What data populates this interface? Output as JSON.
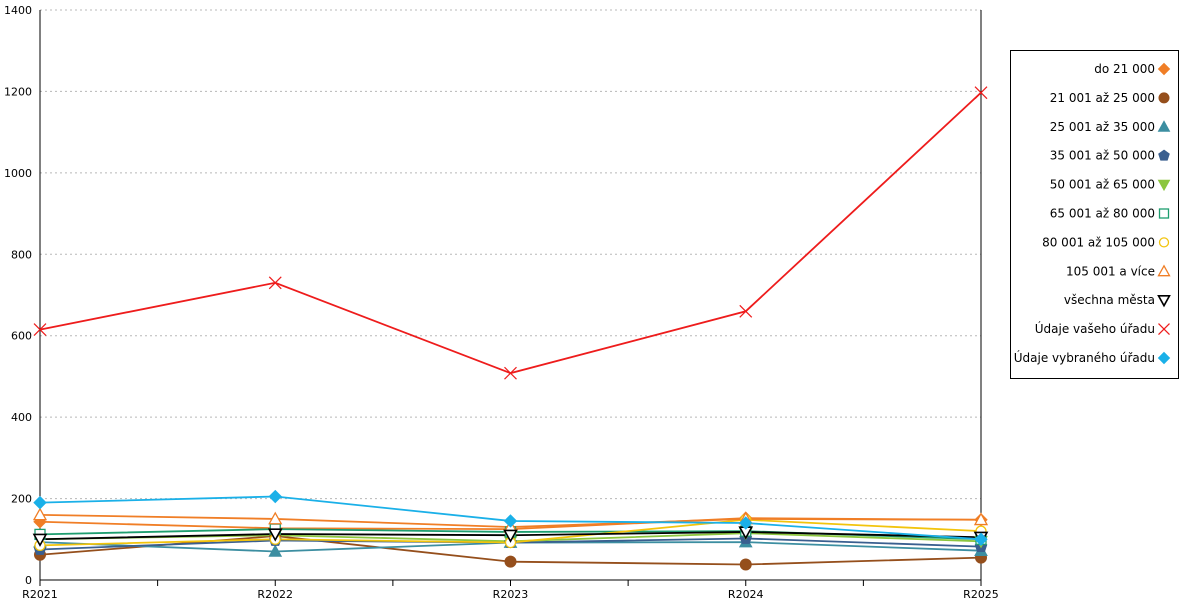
{
  "chart_data": {
    "type": "line",
    "categories": [
      "R2021",
      "R2022",
      "R2023",
      "R2024",
      "R2025"
    ],
    "ylim": [
      0,
      1400
    ],
    "yticks": [
      0,
      200,
      400,
      600,
      800,
      1000,
      1200,
      1400
    ],
    "grid": "horizontal-dotted",
    "legend_position": "right",
    "series": [
      {
        "name": "do 21 000",
        "values": [
          143,
          127,
          125,
          152,
          148
        ],
        "color": "#f07e26",
        "marker": "diamond"
      },
      {
        "name": "21 001 až 25 000",
        "values": [
          62,
          108,
          45,
          38,
          55
        ],
        "color": "#954f1c",
        "marker": "circle"
      },
      {
        "name": "25 001 až 35 000",
        "values": [
          93,
          70,
          92,
          93,
          72
        ],
        "color": "#3c8ea1",
        "marker": "triangle"
      },
      {
        "name": "35 001 až 50 000",
        "values": [
          75,
          97,
          92,
          102,
          82
        ],
        "color": "#3a5f8f",
        "marker": "pentagon"
      },
      {
        "name": "50 001 až 65 000",
        "values": [
          100,
          110,
          95,
          115,
          95
        ],
        "color": "#8cc63f",
        "marker": "triangle-down"
      },
      {
        "name": "65 001 až 80 000",
        "values": [
          112,
          125,
          118,
          120,
          100
        ],
        "color": "#1e9e6f",
        "marker": "square-open"
      },
      {
        "name": "80 001 až 105 000",
        "values": [
          85,
          100,
          92,
          148,
          120
        ],
        "color": "#f2c40d",
        "marker": "circle-open"
      },
      {
        "name": "105 001 a více",
        "values": [
          160,
          150,
          130,
          150,
          148
        ],
        "color": "#f07e26",
        "marker": "triangle-open"
      },
      {
        "name": "všechna města",
        "values": [
          100,
          113,
          110,
          118,
          105
        ],
        "color": "#000000",
        "marker": "triangle-down-open"
      },
      {
        "name": "Údaje vašeho úřadu",
        "values": [
          615,
          730,
          508,
          660,
          1197
        ],
        "color": "#ee1c1c",
        "marker": "x"
      },
      {
        "name": "Údaje vybraného úřadu",
        "values": [
          190,
          205,
          145,
          140,
          100
        ],
        "color": "#1ab0e8",
        "marker": "diamond"
      }
    ]
  }
}
